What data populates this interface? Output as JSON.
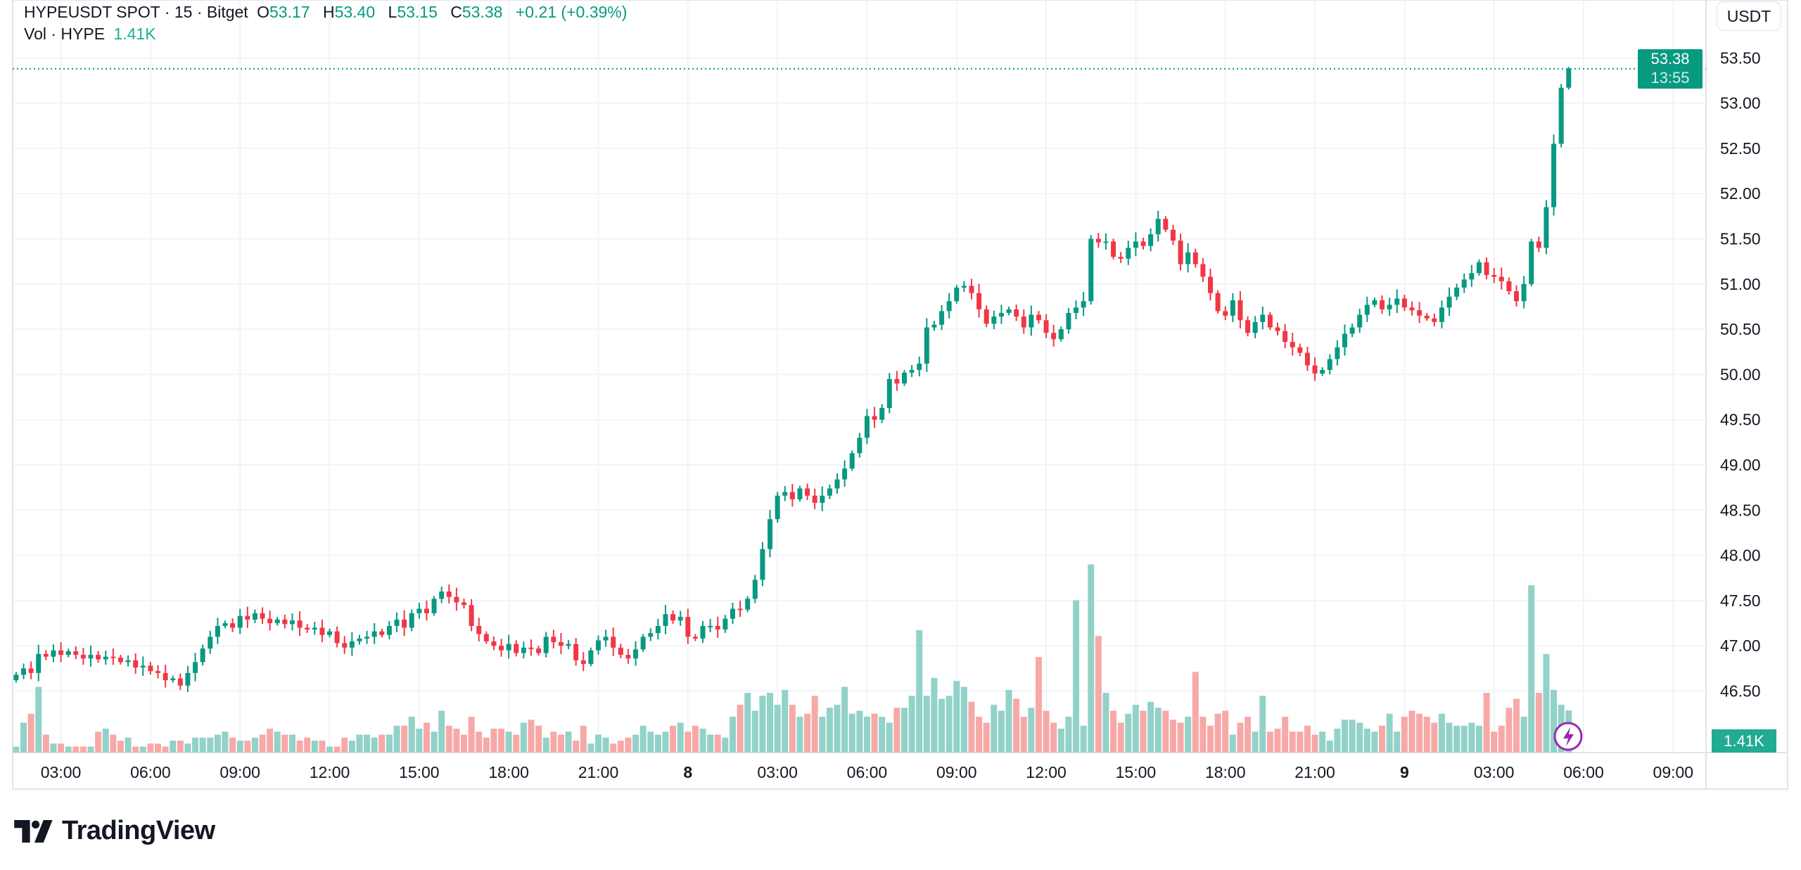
{
  "legend": {
    "symbol": "HYPEUSDT SPOT · 15 · Bitget",
    "open_label": "O",
    "open": "53.17",
    "high_label": "H",
    "high": "53.40",
    "low_label": "L",
    "low": "53.15",
    "close_label": "C",
    "close": "53.38",
    "change": "+0.21 (+0.39%)",
    "volume_label": "Vol · HYPE",
    "volume": "1.41K"
  },
  "price_axis": {
    "currency_button": "USDT",
    "tick_labels": [
      "53.50",
      "53.00",
      "52.50",
      "52.00",
      "51.50",
      "51.00",
      "50.50",
      "50.00",
      "49.50",
      "49.00",
      "48.50",
      "48.00",
      "47.50",
      "47.00",
      "46.50"
    ],
    "last_price": "53.38",
    "countdown": "13:55",
    "volume_value": "1.41K"
  },
  "time_axis": {
    "tick_labels": [
      "03:00",
      "06:00",
      "09:00",
      "12:00",
      "15:00",
      "18:00",
      "21:00",
      "8",
      "03:00",
      "06:00",
      "09:00",
      "12:00",
      "15:00",
      "18:00",
      "21:00",
      "9",
      "03:00",
      "06:00",
      "09:00"
    ],
    "bold_labels": [
      "8",
      "9"
    ]
  },
  "colors": {
    "up": "#089981",
    "down": "#f23645",
    "vol_up": "#92d2c8",
    "vol_down": "#f7a9a7",
    "alert": "#9c27b0"
  },
  "icons": {
    "alert": "lightning-bolt-icon",
    "logo": "tradingview-logo"
  },
  "branding": {
    "name": "TradingView"
  },
  "chart_data": {
    "type": "candlestick",
    "interval": "15",
    "first_open": 46.62,
    "last_candle": {
      "open": 53.17,
      "high": 53.4,
      "low": 53.15,
      "close": 53.38
    },
    "ylim": [
      45.82,
      54.14
    ],
    "closes": [
      46.68,
      46.75,
      46.7,
      46.91,
      46.88,
      46.95,
      46.9,
      46.94,
      46.9,
      46.86,
      46.9,
      46.85,
      46.88,
      46.87,
      46.82,
      46.84,
      46.76,
      46.78,
      46.72,
      46.7,
      46.62,
      46.64,
      46.56,
      46.7,
      46.82,
      46.97,
      47.1,
      47.22,
      47.25,
      47.2,
      47.33,
      47.29,
      47.36,
      47.3,
      47.25,
      47.29,
      47.24,
      47.28,
      47.2,
      47.18,
      47.2,
      47.12,
      47.16,
      47.03,
      46.98,
      47.05,
      47.08,
      47.1,
      47.16,
      47.12,
      47.22,
      47.29,
      47.2,
      47.36,
      47.41,
      47.36,
      47.52,
      47.6,
      47.54,
      47.48,
      47.45,
      47.22,
      47.13,
      47.05,
      47.0,
      46.95,
      47.02,
      46.92,
      46.98,
      46.97,
      46.92,
      47.1,
      47.04,
      47.0,
      47.02,
      46.84,
      46.8,
      46.95,
      47.06,
      47.1,
      46.98,
      46.9,
      46.86,
      46.96,
      47.1,
      47.14,
      47.22,
      47.35,
      47.28,
      47.32,
      47.1,
      47.08,
      47.22,
      47.22,
      47.18,
      47.3,
      47.41,
      47.4,
      47.52,
      47.73,
      48.07,
      48.4,
      48.66,
      48.7,
      48.62,
      48.74,
      48.66,
      48.58,
      48.66,
      48.74,
      48.84,
      48.96,
      49.13,
      49.3,
      49.54,
      49.5,
      49.63,
      49.95,
      49.9,
      50.02,
      50.05,
      50.12,
      50.52,
      50.55,
      50.7,
      50.81,
      50.96,
      50.98,
      50.9,
      50.72,
      50.56,
      50.64,
      50.68,
      50.72,
      50.64,
      50.52,
      50.66,
      50.6,
      50.46,
      50.39,
      50.5,
      50.68,
      50.74,
      50.81,
      51.5,
      51.46,
      51.47,
      51.3,
      51.28,
      51.4,
      51.47,
      51.42,
      51.55,
      51.72,
      51.6,
      51.48,
      51.22,
      51.35,
      51.22,
      51.08,
      50.9,
      50.7,
      50.65,
      50.82,
      50.6,
      50.46,
      50.58,
      50.66,
      50.52,
      50.48,
      50.36,
      50.3,
      50.24,
      50.1,
      50.01,
      50.05,
      50.17,
      50.3,
      50.45,
      50.52,
      50.66,
      50.77,
      50.82,
      50.72,
      50.77,
      50.84,
      50.74,
      50.71,
      50.65,
      50.62,
      50.58,
      50.74,
      50.86,
      50.96,
      51.05,
      51.12,
      51.24,
      51.1,
      51.08,
      51.03,
      50.92,
      50.81,
      51.0,
      51.47,
      51.4,
      51.85,
      52.55,
      53.17,
      53.38
    ],
    "volumes_k": [
      0.2,
      1.0,
      1.3,
      2.2,
      0.6,
      0.3,
      0.3,
      0.2,
      0.2,
      0.2,
      0.2,
      0.7,
      0.8,
      0.6,
      0.4,
      0.5,
      0.2,
      0.2,
      0.3,
      0.3,
      0.2,
      0.4,
      0.4,
      0.3,
      0.5,
      0.5,
      0.5,
      0.6,
      0.7,
      0.5,
      0.4,
      0.4,
      0.5,
      0.6,
      0.8,
      0.7,
      0.6,
      0.6,
      0.4,
      0.5,
      0.4,
      0.4,
      0.2,
      0.2,
      0.5,
      0.4,
      0.6,
      0.6,
      0.5,
      0.6,
      0.6,
      0.9,
      0.9,
      1.2,
      0.8,
      1.0,
      0.7,
      1.4,
      0.9,
      0.8,
      0.6,
      1.2,
      0.7,
      0.5,
      0.8,
      0.8,
      0.7,
      0.6,
      1.0,
      1.1,
      0.9,
      0.5,
      0.7,
      0.6,
      0.7,
      0.4,
      0.9,
      0.3,
      0.6,
      0.5,
      0.3,
      0.4,
      0.5,
      0.6,
      0.9,
      0.7,
      0.6,
      0.7,
      0.9,
      1.0,
      0.7,
      0.9,
      0.8,
      0.6,
      0.6,
      0.5,
      1.2,
      1.6,
      2.0,
      1.4,
      1.9,
      2.0,
      1.6,
      2.1,
      1.6,
      1.2,
      1.3,
      1.9,
      1.2,
      1.5,
      1.6,
      2.2,
      1.3,
      1.4,
      1.2,
      1.3,
      1.2,
      1.0,
      1.5,
      1.5,
      1.9,
      4.1,
      1.9,
      2.5,
      1.8,
      1.9,
      2.4,
      2.2,
      1.7,
      1.2,
      1.0,
      1.6,
      1.4,
      2.1,
      1.8,
      1.2,
      1.5,
      3.2,
      1.4,
      1.0,
      0.8,
      1.2,
      5.1,
      0.9,
      6.3,
      3.9,
      2.0,
      1.4,
      1.0,
      1.3,
      1.6,
      1.4,
      1.7,
      1.5,
      1.4,
      1.1,
      1.0,
      1.2,
      2.7,
      1.2,
      0.9,
      1.3,
      1.4,
      0.6,
      1.0,
      1.2,
      0.7,
      1.9,
      0.7,
      0.8,
      1.2,
      0.7,
      0.7,
      0.9,
      0.6,
      0.7,
      0.4,
      0.8,
      1.1,
      1.1,
      1.0,
      0.8,
      0.7,
      0.9,
      1.3,
      0.7,
      1.2,
      1.4,
      1.3,
      1.2,
      1.0,
      1.3,
      1.0,
      0.9,
      0.9,
      1.0,
      0.9,
      2.0,
      0.7,
      0.9,
      1.5,
      1.8,
      1.2,
      5.6,
      2.0,
      3.3,
      2.1,
      1.6,
      1.41
    ]
  }
}
